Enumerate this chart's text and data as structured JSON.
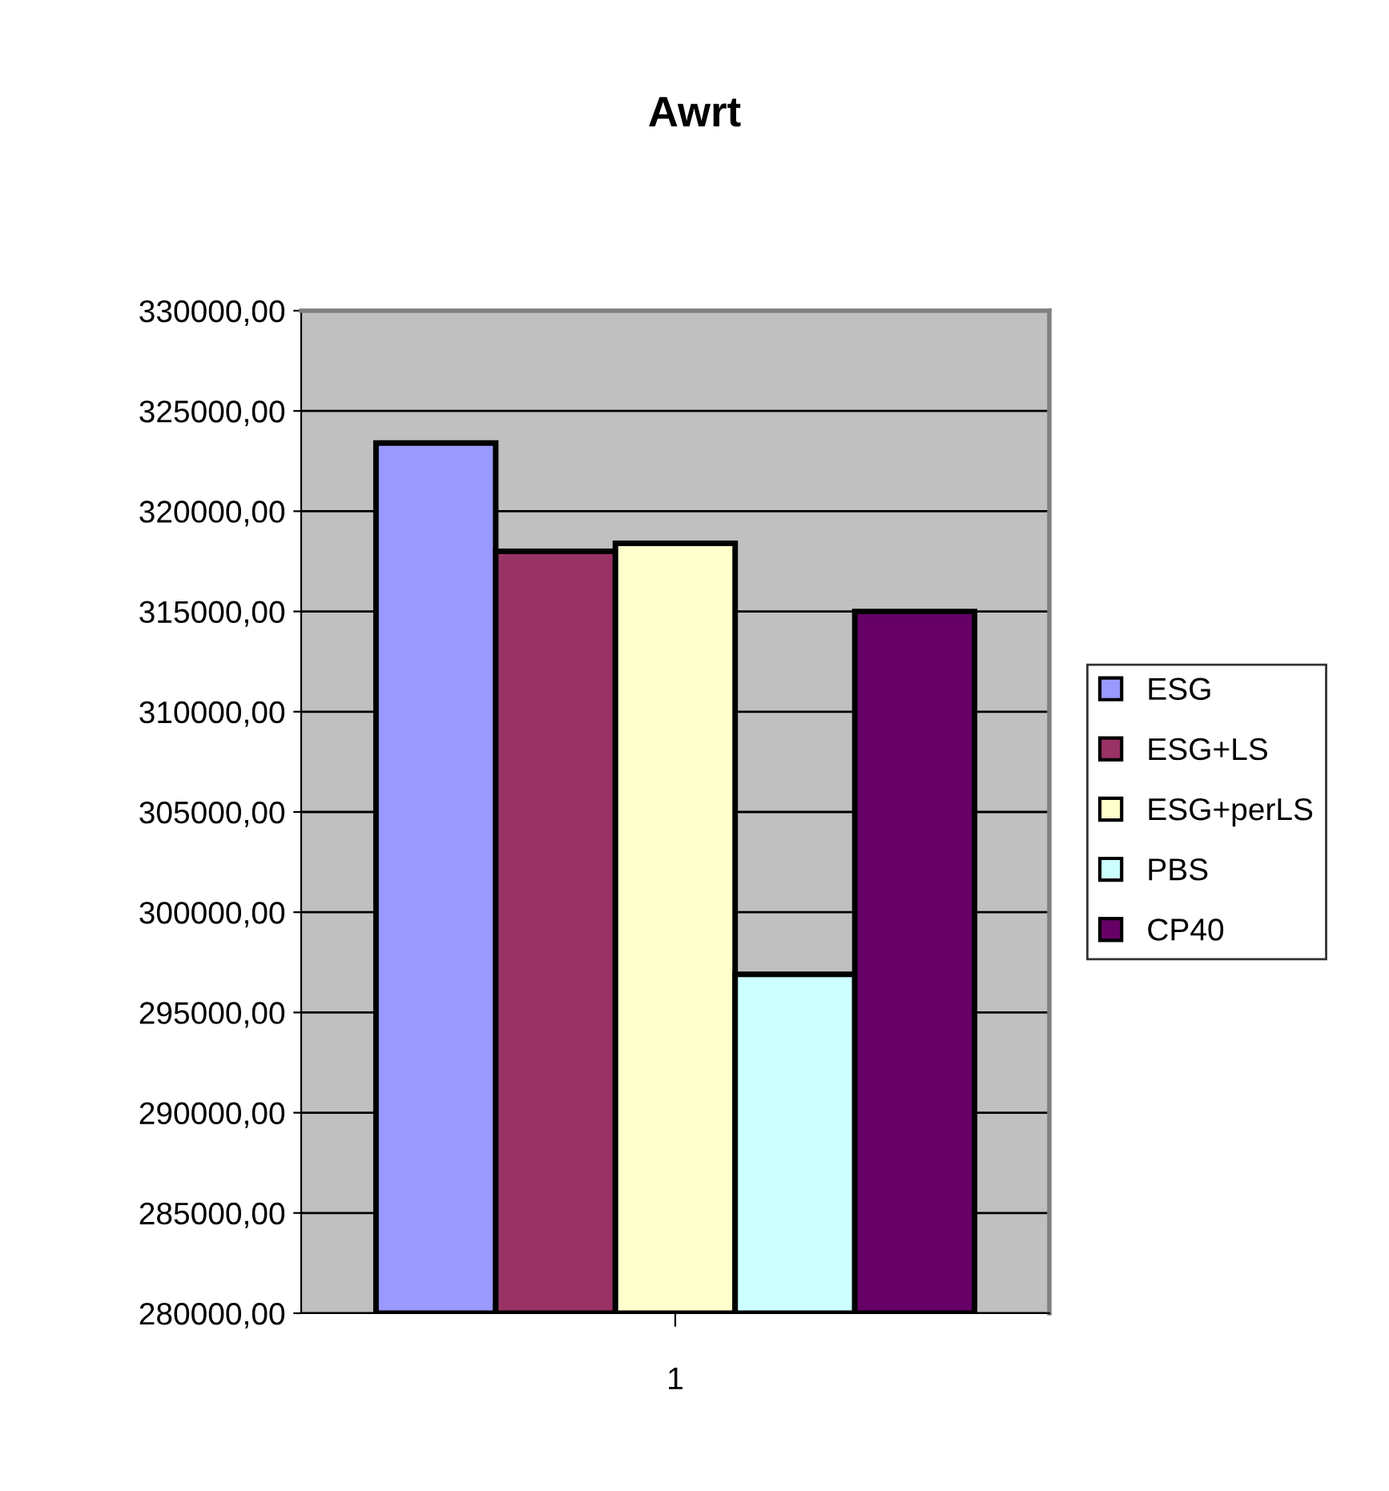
{
  "chart_data": {
    "type": "bar",
    "title": "Awrt",
    "categories": [
      "1"
    ],
    "series": [
      {
        "name": "ESG",
        "color": "#9999ff",
        "values": [
          323400
        ]
      },
      {
        "name": "ESG+LS",
        "color": "#993366",
        "values": [
          318000
        ]
      },
      {
        "name": "ESG+perLS",
        "color": "#ffffcc",
        "values": [
          318400
        ]
      },
      {
        "name": "PBS",
        "color": "#ccffff",
        "values": [
          296900
        ]
      },
      {
        "name": "CP40",
        "color": "#660066",
        "values": [
          315000
        ]
      }
    ],
    "ylim": [
      280000,
      330000
    ],
    "yticks": [
      {
        "value": 280000,
        "label": "280000,00"
      },
      {
        "value": 285000,
        "label": "285000,00"
      },
      {
        "value": 290000,
        "label": "290000,00"
      },
      {
        "value": 295000,
        "label": "295000,00"
      },
      {
        "value": 300000,
        "label": "300000,00"
      },
      {
        "value": 305000,
        "label": "305000,00"
      },
      {
        "value": 310000,
        "label": "310000,00"
      },
      {
        "value": 315000,
        "label": "315000,00"
      },
      {
        "value": 320000,
        "label": "320000,00"
      },
      {
        "value": 325000,
        "label": "325000,00"
      },
      {
        "value": 330000,
        "label": "330000,00"
      }
    ],
    "grid": "y",
    "legend": "right"
  }
}
